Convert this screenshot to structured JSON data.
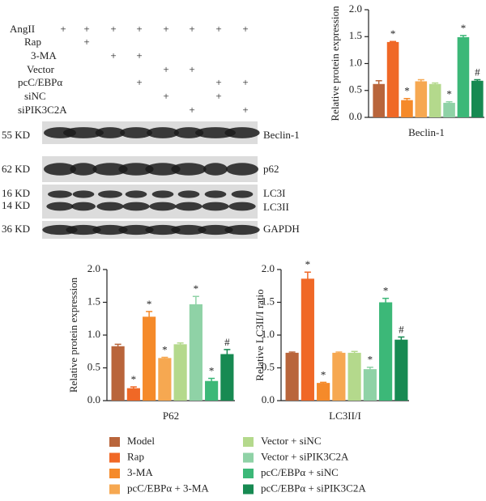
{
  "blot": {
    "treatments": [
      {
        "label": "AngII",
        "marks": [
          "+",
          "+",
          "+",
          "+",
          "+",
          "+",
          "+",
          "+"
        ]
      },
      {
        "label": "Rap",
        "marks": [
          null,
          "+",
          null,
          null,
          null,
          null,
          null,
          null
        ]
      },
      {
        "label": "3-MA",
        "marks": [
          null,
          null,
          "+",
          "+",
          null,
          null,
          null,
          null
        ]
      },
      {
        "label": "Vector",
        "marks": [
          null,
          null,
          null,
          null,
          "+",
          "+",
          null,
          null
        ]
      },
      {
        "label": "pcC/EBPα",
        "marks": [
          null,
          null,
          null,
          "+",
          null,
          null,
          "+",
          "+"
        ]
      },
      {
        "label": "siNC",
        "marks": [
          null,
          null,
          null,
          null,
          "+",
          null,
          "+",
          null
        ]
      },
      {
        "label": "siPIK3C2A",
        "marks": [
          null,
          null,
          null,
          null,
          null,
          "+",
          null,
          "+"
        ]
      }
    ],
    "bands": [
      {
        "size": "55 KD",
        "protein": "Beclin-1"
      },
      {
        "size": "62 KD",
        "protein": "p62"
      },
      {
        "size": "16 KD",
        "protein": "LC3I"
      },
      {
        "size": "14 KD",
        "protein": "LC3II"
      },
      {
        "size": "36 KD",
        "protein": "GAPDH"
      }
    ]
  },
  "legend": [
    {
      "name": "Model",
      "color": "#b9653b"
    },
    {
      "name": "Rap",
      "color": "#f06826"
    },
    {
      "name": "3-MA",
      "color": "#f58a2a"
    },
    {
      "name": "pcC/EBPα + 3-MA",
      "color": "#f6a851"
    },
    {
      "name": "Vector + siNC",
      "color": "#b4d98c"
    },
    {
      "name": "Vector + siPIK3C2A",
      "color": "#8fd2a6"
    },
    {
      "name": "pcC/EBPα + siNC",
      "color": "#3cb878"
    },
    {
      "name": "pcC/EBPα + siPIK3C2A",
      "color": "#178a52"
    }
  ],
  "chart_data": [
    {
      "type": "bar",
      "ylabel": "Relative protein expression",
      "xlabel": "Beclin-1",
      "values": [
        0.62,
        1.4,
        0.32,
        0.67,
        0.62,
        0.27,
        1.49,
        0.68
      ],
      "errors": [
        0.06,
        0.01,
        0.03,
        0.03,
        0.02,
        0.02,
        0.03,
        0.02
      ],
      "markers": [
        null,
        "*",
        "*",
        null,
        null,
        "*",
        "*",
        "#"
      ],
      "ylim": [
        0,
        2
      ],
      "yticks": [
        {
          "value": 0,
          "label": "0.0"
        },
        {
          "value": 0.5,
          "label": "0.5"
        },
        {
          "value": 1,
          "label": "1.0"
        },
        {
          "value": 1.5,
          "label": "1.5"
        },
        {
          "value": 2,
          "label": "2.0"
        }
      ]
    },
    {
      "type": "bar",
      "ylabel": "Relative protein expression",
      "xlabel": "P62",
      "values": [
        0.83,
        0.19,
        1.28,
        0.65,
        0.86,
        1.47,
        0.3,
        0.71
      ],
      "errors": [
        0.03,
        0.02,
        0.08,
        0.01,
        0.02,
        0.12,
        0.04,
        0.07
      ],
      "markers": [
        null,
        "*",
        "*",
        "*",
        null,
        "*",
        "*",
        "#"
      ],
      "ylim": [
        0,
        2
      ],
      "yticks": [
        {
          "value": 0,
          "label": "0.0"
        },
        {
          "value": 0.5,
          "label": "0.5"
        },
        {
          "value": 1,
          "label": "1.0"
        },
        {
          "value": 1.5,
          "label": "1.5"
        },
        {
          "value": 2,
          "label": "2.0"
        }
      ]
    },
    {
      "type": "bar",
      "ylabel": "Relative LC3II/I ratio",
      "xlabel": "LC3II/I",
      "values": [
        0.73,
        1.86,
        0.27,
        0.73,
        0.73,
        0.48,
        1.5,
        0.93
      ],
      "errors": [
        0.01,
        0.1,
        0.01,
        0.01,
        0.02,
        0.03,
        0.06,
        0.04
      ],
      "markers": [
        null,
        "*",
        "*",
        null,
        null,
        "*",
        "*",
        "#"
      ],
      "ylim": [
        0,
        2
      ],
      "yticks": [
        {
          "value": 0,
          "label": "0.0"
        },
        {
          "value": 0.5,
          "label": "0.5"
        },
        {
          "value": 1,
          "label": "1.0"
        },
        {
          "value": 1.5,
          "label": "1.5"
        },
        {
          "value": 2,
          "label": "2.0"
        }
      ]
    }
  ]
}
